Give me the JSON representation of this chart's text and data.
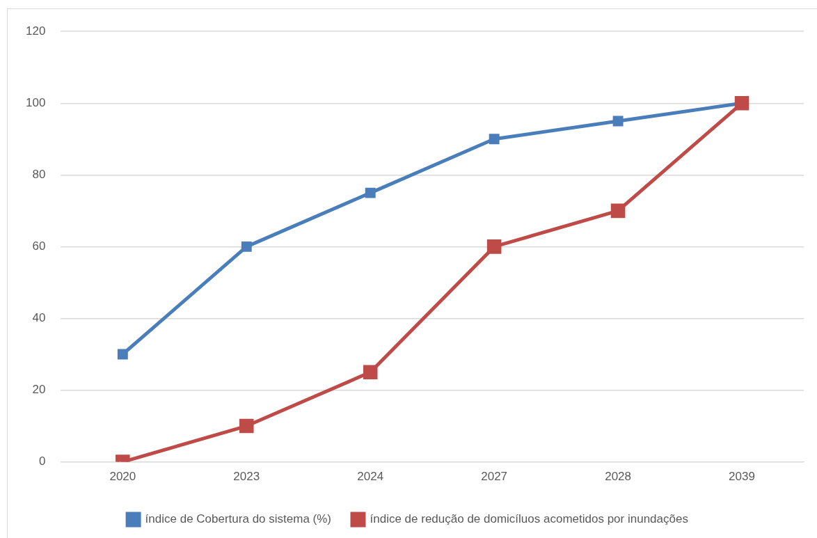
{
  "chart_data": {
    "type": "line",
    "categories": [
      "2020",
      "2023",
      "2024",
      "2027",
      "2028",
      "2039"
    ],
    "series": [
      {
        "name": "índice de Cobertura do sistema (%)",
        "color": "#4a7ebb",
        "values": [
          30,
          60,
          75,
          90,
          95,
          100
        ]
      },
      {
        "name": "índice de redução de domicíluos acometidos por inundações",
        "color": "#be4b48",
        "values": [
          0,
          10,
          25,
          60,
          70,
          100
        ]
      }
    ],
    "ylim": [
      0,
      120
    ],
    "yticks": [
      0,
      20,
      40,
      60,
      80,
      100,
      120
    ],
    "grid": "y",
    "legend": "bottom",
    "marker": "square"
  }
}
